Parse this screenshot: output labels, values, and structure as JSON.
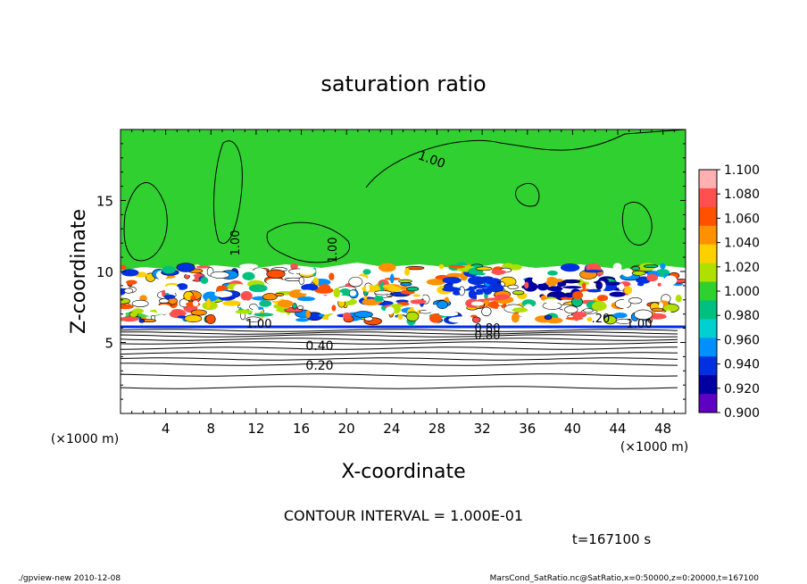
{
  "chart_data": {
    "type": "heatmap",
    "title": "saturation ratio",
    "xlabel": "X-coordinate",
    "ylabel": "Z-coordinate",
    "x_unit": "(×1000 m)",
    "y_unit": "(×1000 m)",
    "xlim": [
      0,
      50
    ],
    "ylim": [
      0,
      20
    ],
    "x_ticks": [
      4,
      8,
      12,
      16,
      20,
      24,
      28,
      32,
      36,
      40,
      44,
      48
    ],
    "y_ticks": [
      5,
      10,
      15
    ],
    "colorbar": {
      "levels": [
        "1.100",
        "1.080",
        "1.060",
        "1.040",
        "1.020",
        "1.000",
        "0.980",
        "0.960",
        "0.940",
        "0.920",
        "0.900"
      ],
      "colors": [
        "#ffb0b0",
        "#ff5050",
        "#ff5000",
        "#ff9000",
        "#ffd000",
        "#b0e000",
        "#30d030",
        "#00c080",
        "#00d0d0",
        "#0090ff",
        "#0030e0",
        "#0000a0",
        "#6000c0"
      ]
    },
    "contour_labels": [
      "1.00",
      "1.00",
      "1.00",
      "1.00",
      "1.00",
      "0.80",
      "0.80",
      "0.40",
      "0.20",
      ".20"
    ],
    "contour_interval_text": "CONTOUR INTERVAL = 1.000E-01",
    "time_text": "t=167100 s",
    "footer_left": "./gpview-new   2010-12-08",
    "footer_right": "MarsCond_SatRatio.nc@SatRatio,x=0:50000,z=0:20000,t=167100"
  }
}
